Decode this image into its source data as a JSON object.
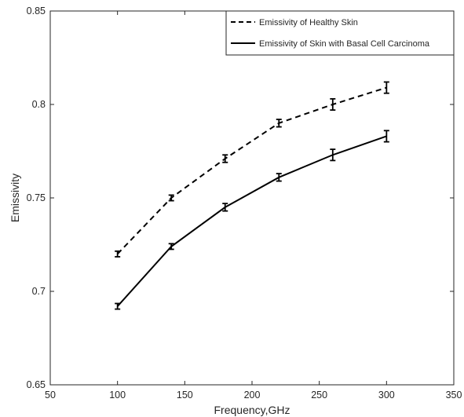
{
  "chart_data": {
    "type": "line",
    "title": "",
    "xlabel": "Frequency,GHz",
    "ylabel": "Emissivity",
    "xlim": [
      50,
      350
    ],
    "ylim": [
      0.65,
      0.85
    ],
    "x_ticks": [
      50,
      100,
      150,
      200,
      250,
      300,
      350
    ],
    "y_ticks": [
      0.65,
      0.7,
      0.75,
      0.8,
      0.85
    ],
    "x_tick_labels": [
      "50",
      "100",
      "150",
      "200",
      "250",
      "300",
      "350"
    ],
    "y_tick_labels": [
      "0.65",
      "0.7",
      "0.75",
      "0.8",
      "0.85"
    ],
    "grid": false,
    "legend_position": "top-right",
    "x": [
      100,
      140,
      180,
      220,
      260,
      300
    ],
    "series": [
      {
        "name": "Emissivity of Healthy Skin",
        "line_style": "dashed",
        "color": "#000000",
        "values": [
          0.72,
          0.75,
          0.771,
          0.79,
          0.8,
          0.809
        ],
        "errors": [
          0.0015,
          0.0015,
          0.002,
          0.002,
          0.003,
          0.003
        ]
      },
      {
        "name": "Emissivity of Skin with Basal Cell Carcinoma",
        "line_style": "solid",
        "color": "#000000",
        "values": [
          0.692,
          0.724,
          0.745,
          0.761,
          0.773,
          0.783
        ],
        "errors": [
          0.0015,
          0.0015,
          0.002,
          0.002,
          0.003,
          0.003
        ]
      }
    ]
  }
}
